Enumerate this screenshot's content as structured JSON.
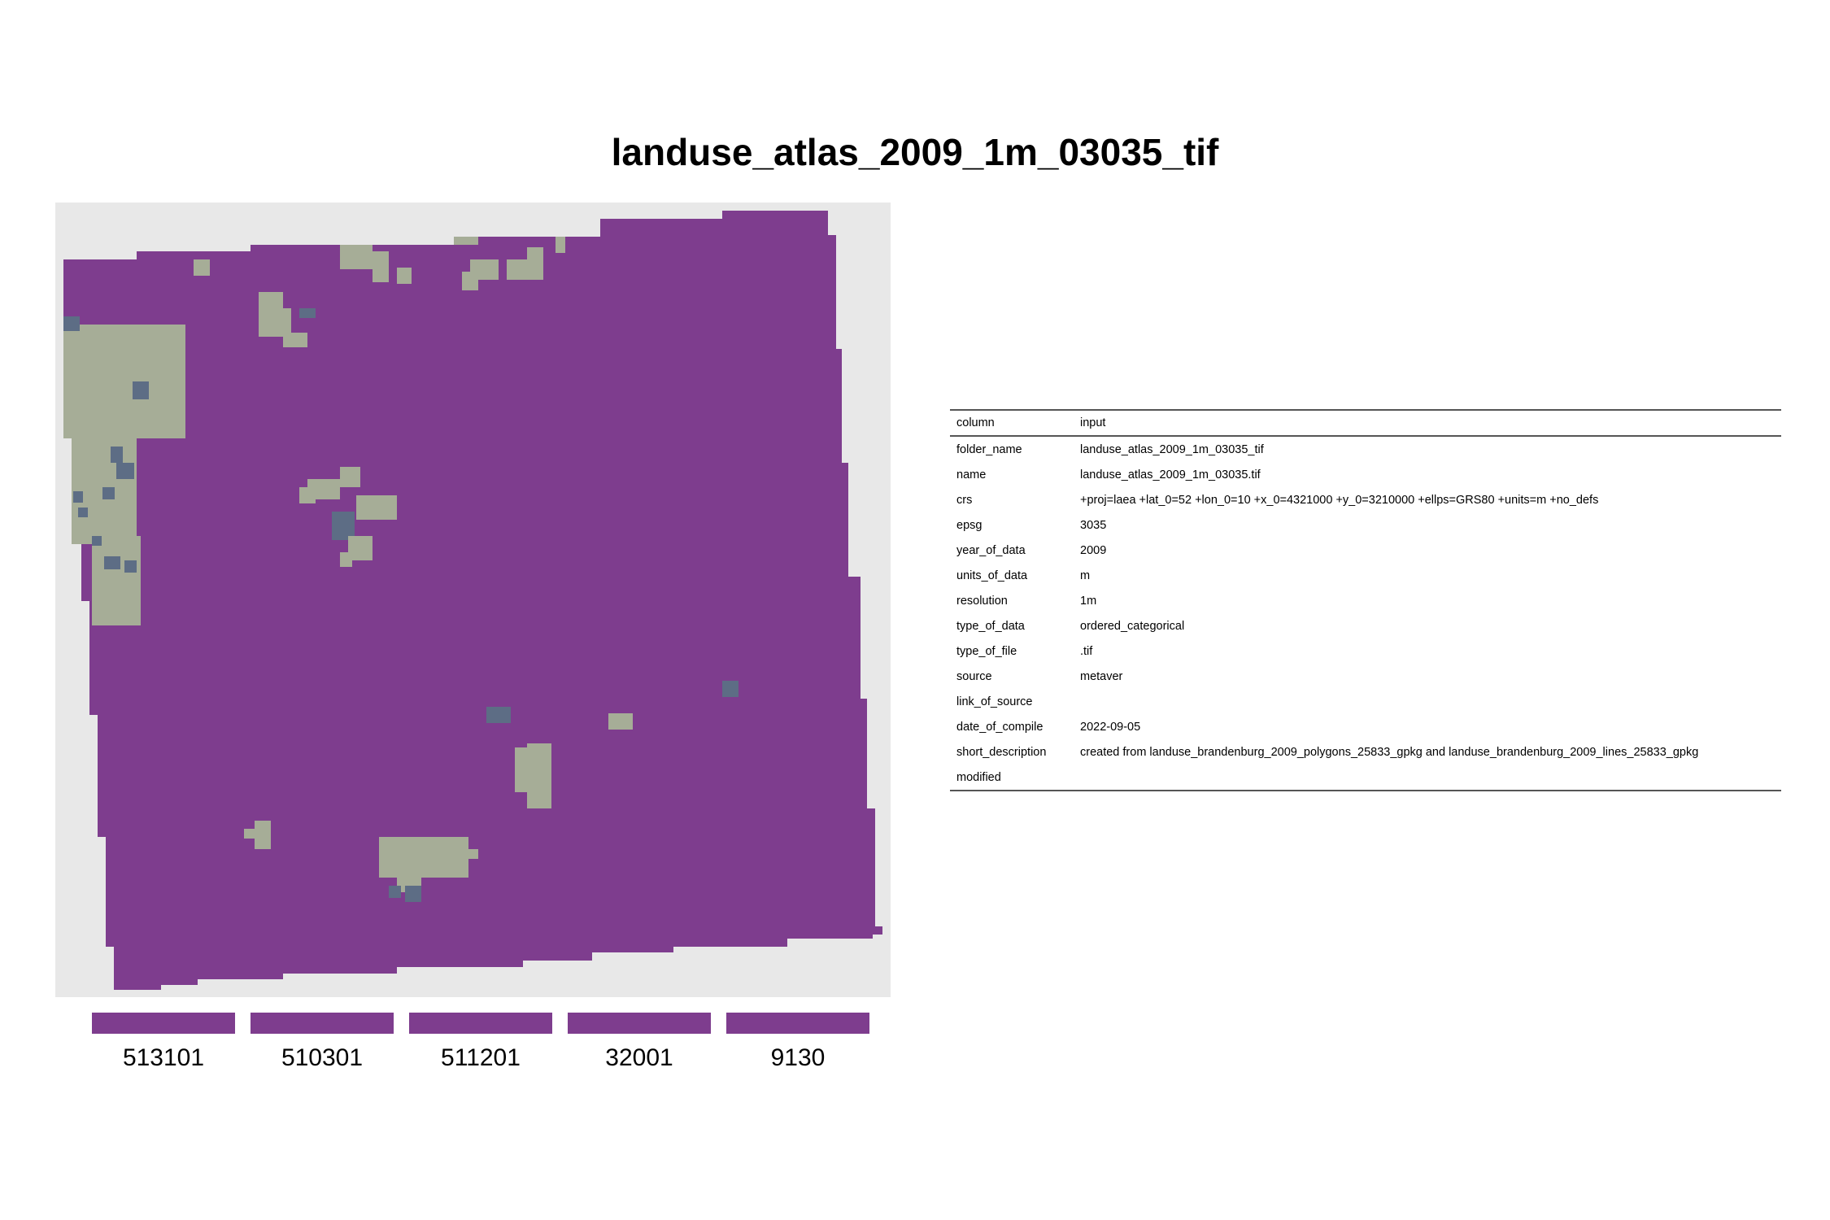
{
  "title": "landuse_atlas_2009_1m_03035_tif",
  "colors": {
    "panel_background": "#e8e8e8",
    "landuse_main": "#7e3d8e",
    "landuse_light": "#a6ad97",
    "landuse_dark": "#5d6d85"
  },
  "legend": [
    {
      "label": "513101",
      "color": "#7e3d8e"
    },
    {
      "label": "510301",
      "color": "#7e3d8e"
    },
    {
      "label": "511201",
      "color": "#7e3d8e"
    },
    {
      "label": "32001",
      "color": "#7e3d8e"
    },
    {
      "label": "9130",
      "color": "#7e3d8e"
    }
  ],
  "metadata_table": {
    "headers": {
      "column": "column",
      "value": "input"
    },
    "rows": [
      {
        "column": "folder_name",
        "input": "landuse_atlas_2009_1m_03035_tif"
      },
      {
        "column": "name",
        "input": "landuse_atlas_2009_1m_03035.tif"
      },
      {
        "column": "crs",
        "input": "+proj=laea +lat_0=52 +lon_0=10 +x_0=4321000 +y_0=3210000 +ellps=GRS80 +units=m +no_defs"
      },
      {
        "column": "epsg",
        "input": "3035"
      },
      {
        "column": "year_of_data",
        "input": "2009"
      },
      {
        "column": "units_of_data",
        "input": "m"
      },
      {
        "column": "resolution",
        "input": "1m"
      },
      {
        "column": "type_of_data",
        "input": "ordered_categorical"
      },
      {
        "column": "type_of_file",
        "input": ".tif"
      },
      {
        "column": "source",
        "input": "metaver"
      },
      {
        "column": "link_of_source",
        "input": ""
      },
      {
        "column": "date_of_compile",
        "input": "2022-09-05"
      },
      {
        "column": "short_description",
        "input": "created from landuse_brandenburg_2009_polygons_25833_gpkg and landuse_brandenburg_2009_lines_25833_gpkg"
      },
      {
        "column": "modified",
        "input": ""
      }
    ]
  }
}
